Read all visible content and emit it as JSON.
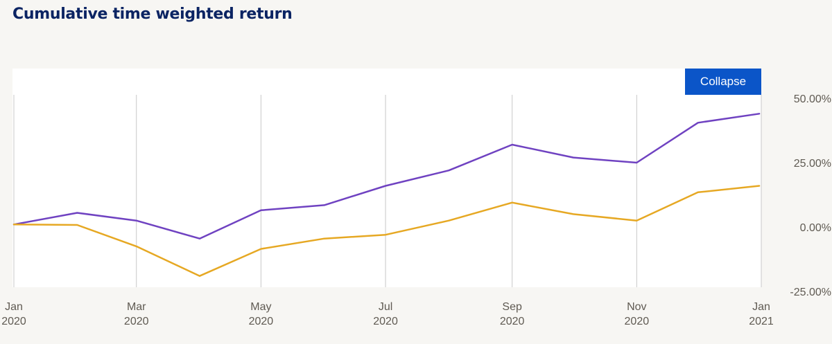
{
  "title": "Cumulative time weighted return",
  "collapse_label": "Collapse",
  "colors": {
    "title": "#0b2463",
    "button": "#0b55c8",
    "series_1": "#6f42c1",
    "series_2": "#e6a823",
    "gridline": "#c8c8c8"
  },
  "chart_data": {
    "type": "line",
    "title": "Cumulative time weighted return",
    "xlabel": "",
    "ylabel": "",
    "x": [
      "2020-01-01",
      "2020-02-01",
      "2020-03-01",
      "2020-04-01",
      "2020-05-01",
      "2020-06-01",
      "2020-07-01",
      "2020-08-01",
      "2020-09-01",
      "2020-10-01",
      "2020-11-01",
      "2020-12-01",
      "2020-12-31"
    ],
    "x_ticks": [
      {
        "date": "2020-01-01",
        "label": [
          "Jan",
          "2020"
        ]
      },
      {
        "date": "2020-03-01",
        "label": [
          "Mar",
          "2020"
        ]
      },
      {
        "date": "2020-05-01",
        "label": [
          "May",
          "2020"
        ]
      },
      {
        "date": "2020-07-01",
        "label": [
          "Jul",
          "2020"
        ]
      },
      {
        "date": "2020-09-01",
        "label": [
          "Sep",
          "2020"
        ]
      },
      {
        "date": "2020-11-01",
        "label": [
          "Nov",
          "2020"
        ]
      },
      {
        "date": "2021-01-01",
        "label": [
          "Jan",
          "2021"
        ]
      }
    ],
    "xlim": [
      "2020-01-01",
      "2021-01-01"
    ],
    "y_ticks": [
      {
        "value": 50,
        "label": "50.00%"
      },
      {
        "value": 25,
        "label": "25.00%"
      },
      {
        "value": 0,
        "label": "0.00%"
      },
      {
        "value": -25,
        "label": "-25.00%"
      }
    ],
    "ylim": [
      -25,
      50
    ],
    "y_axis_position": "right",
    "grid": "vertical",
    "series": [
      {
        "values": [
          1,
          5.5,
          2.5,
          -4.5,
          6.5,
          8.5,
          16,
          22,
          32,
          27,
          25,
          40.5,
          44
        ],
        "color": "#6f42c1"
      },
      {
        "values": [
          1,
          0.8,
          -7.5,
          -19,
          -8.5,
          -4.5,
          -3,
          2.5,
          9.5,
          5,
          2.5,
          13.5,
          16
        ],
        "color": "#e6a823"
      }
    ]
  }
}
